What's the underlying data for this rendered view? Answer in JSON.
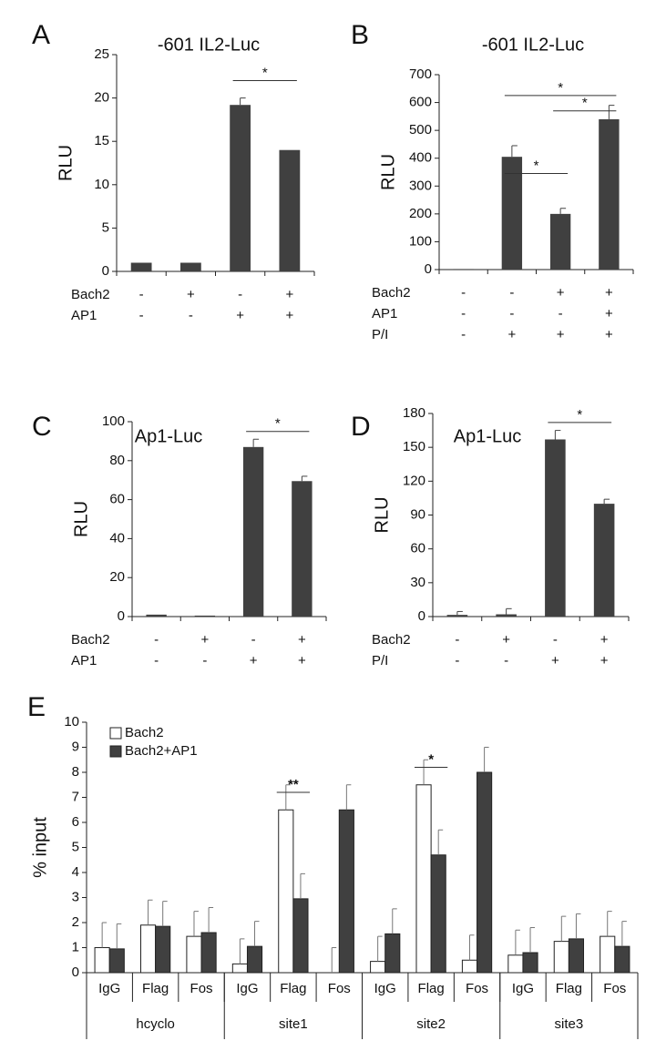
{
  "chart_data": [
    {
      "type": "bar",
      "letter": "A",
      "title": "-601 IL2-Luc",
      "ylabel": "RLU",
      "categories": [
        null,
        null,
        null,
        null
      ],
      "values": [
        1,
        1,
        19.2,
        14
      ],
      "errors": [
        0,
        0,
        0.8,
        0
      ],
      "color": "#404040",
      "ylim": [
        0,
        25
      ],
      "yticks": [
        0,
        5,
        10,
        15,
        20,
        25
      ],
      "conditions": [
        {
          "label": "Bach2",
          "signs": [
            "-",
            "+",
            "-",
            "+"
          ]
        },
        {
          "label": "AP1",
          "signs": [
            "-",
            "-",
            "+",
            "+"
          ]
        }
      ],
      "annotations": [
        {
          "text": "*",
          "from": 2,
          "to": 3,
          "y": 22
        }
      ]
    },
    {
      "type": "bar",
      "letter": "B",
      "title": "-601 IL2-Luc",
      "ylabel": "RLU",
      "categories": [
        null,
        null,
        null,
        null
      ],
      "values": [
        2,
        405,
        200,
        540
      ],
      "errors": [
        0,
        40,
        20,
        50
      ],
      "color": "#404040",
      "ylim": [
        0,
        700
      ],
      "yticks": [
        0,
        100,
        200,
        300,
        400,
        500,
        600,
        700
      ],
      "conditions": [
        {
          "label": "Bach2",
          "signs": [
            "-",
            "-",
            "+",
            "+"
          ]
        },
        {
          "label": "AP1",
          "signs": [
            "-",
            "-",
            "-",
            "+"
          ]
        },
        {
          "label": "P/I",
          "signs": [
            "-",
            "+",
            "+",
            "+"
          ]
        }
      ],
      "annotations": [
        {
          "text": "*",
          "from": 1,
          "to": 2,
          "y": 345
        },
        {
          "text": "*",
          "from": 1,
          "to": 3,
          "y": 625
        },
        {
          "text": "*",
          "from": 2,
          "to": 3,
          "y": 570
        }
      ]
    },
    {
      "type": "bar",
      "letter": "C",
      "title": "Ap1-Luc",
      "ylabel": "RLU",
      "categories": [
        null,
        null,
        null,
        null
      ],
      "values": [
        1,
        0.5,
        87,
        69.5
      ],
      "errors": [
        0,
        0,
        4,
        2.5
      ],
      "color": "#404040",
      "ylim": [
        0,
        100
      ],
      "yticks": [
        0,
        20,
        40,
        60,
        80,
        100
      ],
      "conditions": [
        {
          "label": "Bach2",
          "signs": [
            "-",
            "+",
            "-",
            "+"
          ]
        },
        {
          "label": "AP1",
          "signs": [
            "-",
            "-",
            "+",
            "+"
          ]
        }
      ],
      "annotations": [
        {
          "text": "*",
          "from": 2,
          "to": 3,
          "y": 95
        }
      ]
    },
    {
      "type": "bar",
      "letter": "D",
      "title": "Ap1-Luc",
      "ylabel": "RLU",
      "categories": [
        null,
        null,
        null,
        null
      ],
      "values": [
        1.5,
        2,
        157,
        100
      ],
      "errors": [
        3,
        5,
        8,
        4
      ],
      "color": "#404040",
      "ylim": [
        0,
        180
      ],
      "yticks": [
        0,
        30,
        60,
        90,
        120,
        150,
        180
      ],
      "conditions": [
        {
          "label": "Bach2",
          "signs": [
            "-",
            "+",
            "-",
            "+"
          ]
        },
        {
          "label": "P/I",
          "signs": [
            "-",
            "-",
            "+",
            "+"
          ]
        }
      ],
      "annotations": [
        {
          "text": "*",
          "from": 2,
          "to": 3,
          "y": 172
        }
      ]
    },
    {
      "type": "grouped_bar",
      "letter": "E",
      "ylabel": "% input",
      "categories": [
        "IgG",
        "Flag",
        "Fos",
        "IgG",
        "Flag",
        "Fos",
        "IgG",
        "Flag",
        "Fos",
        "IgG",
        "Flag",
        "Fos"
      ],
      "groups": [
        "hcyclo",
        "site1",
        "site2",
        "site3"
      ],
      "series": [
        {
          "name": "Bach2",
          "color": "#ffffff",
          "values": [
            1.0,
            1.9,
            1.45,
            0.35,
            6.5,
            0,
            0.45,
            7.5,
            0.5,
            0.7,
            1.25,
            1.45
          ],
          "errors": [
            1.0,
            1.0,
            1.0,
            1.0,
            1.0,
            1.0,
            1.0,
            1.0,
            1.0,
            1.0,
            1.0,
            1.0
          ]
        },
        {
          "name": "Bach2+AP1",
          "color": "#404040",
          "values": [
            0.95,
            1.85,
            1.6,
            1.05,
            2.95,
            6.5,
            1.55,
            4.7,
            8.0,
            0.8,
            1.35,
            1.05
          ],
          "errors": [
            1.0,
            1.0,
            1.0,
            1.0,
            1.0,
            1.0,
            1.0,
            1.0,
            1.0,
            1.0,
            1.0,
            1.0
          ]
        }
      ],
      "ylim": [
        0,
        10
      ],
      "yticks": [
        0,
        1,
        2,
        3,
        4,
        5,
        6,
        7,
        8,
        9,
        10
      ],
      "legend": "top-left",
      "annotations": [
        {
          "text": "**",
          "category": 4,
          "y": 7.2
        },
        {
          "text": "*",
          "category": 7,
          "y": 8.2
        }
      ]
    }
  ]
}
